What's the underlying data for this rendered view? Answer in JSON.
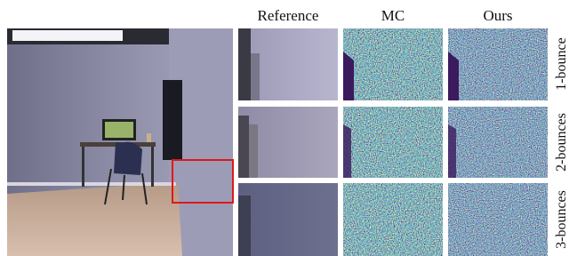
{
  "column_headers": [
    "Reference",
    "MC",
    "Ours"
  ],
  "row_labels": [
    "1-bounce",
    "2-bounces",
    "3-bounces"
  ]
}
